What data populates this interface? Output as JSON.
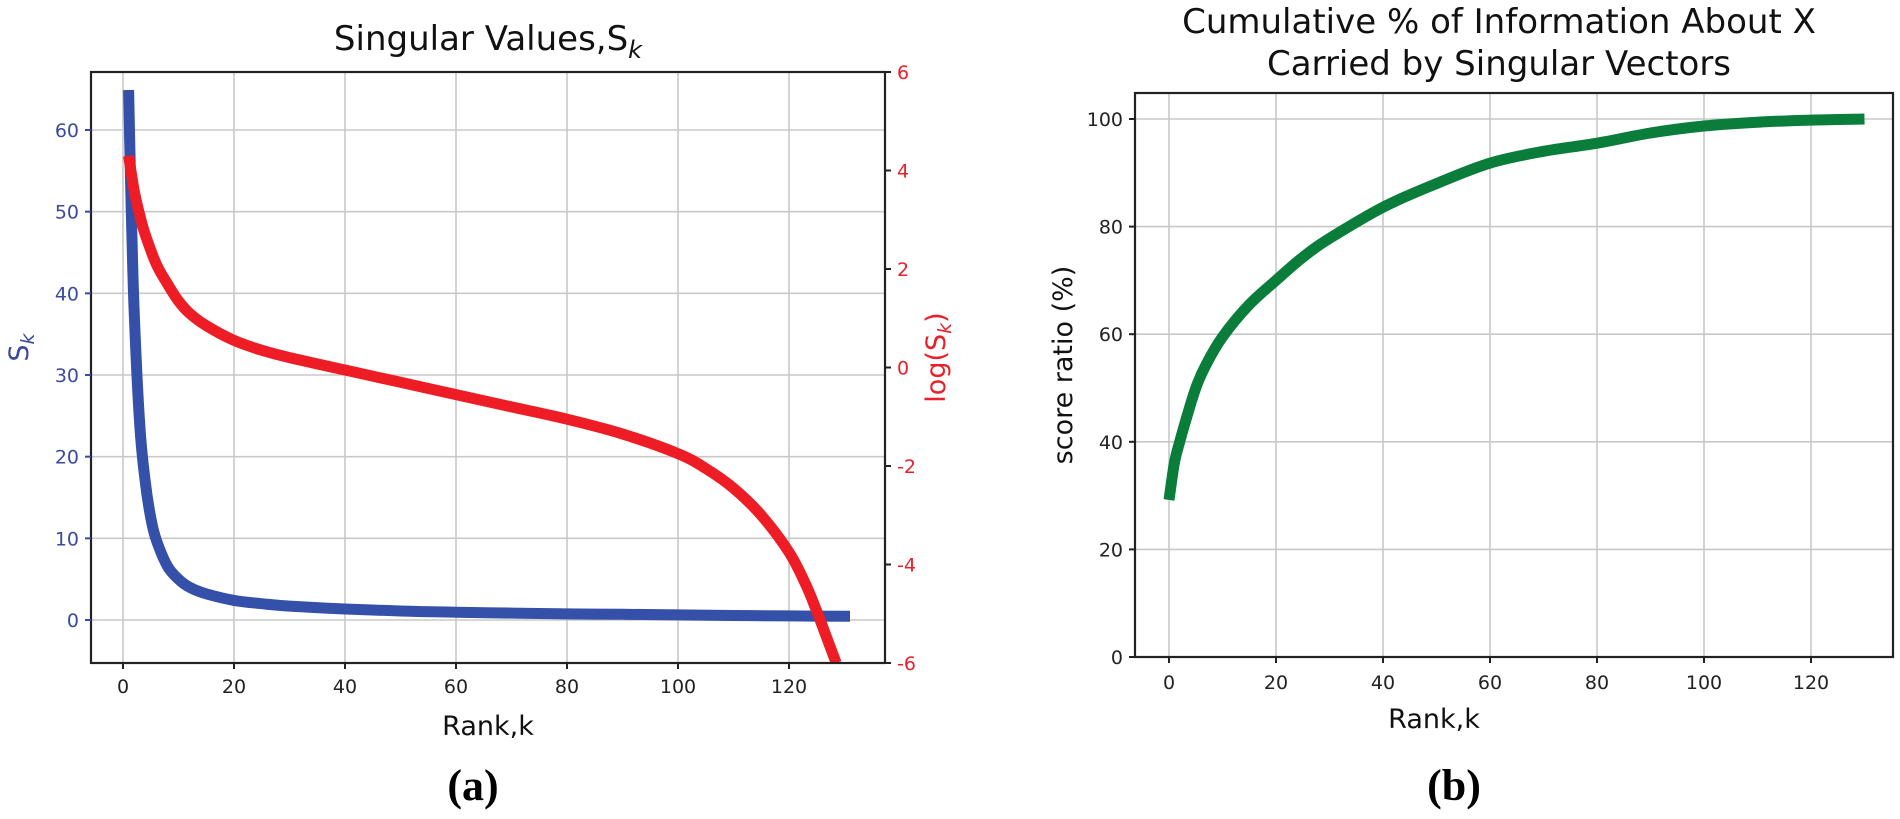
{
  "chart_data": [
    {
      "id": "a",
      "type": "line",
      "title": "Singular Values,S",
      "title_subscript": "k",
      "caption": "(a)",
      "xlabel": "Rank,k",
      "ylabel": "S",
      "ylabel_subscript": "k",
      "y2label": "log(S",
      "y2label_subscript": "k",
      "y2label_close": ")",
      "xlim": [
        -5,
        135
      ],
      "ylim": [
        -5,
        67
      ],
      "y2lim": [
        -6,
        6
      ],
      "xticks": [
        0,
        20,
        40,
        60,
        80,
        100,
        120
      ],
      "yticks": [
        0,
        10,
        20,
        30,
        40,
        50,
        60
      ],
      "y2ticks": [
        -6,
        -4,
        -2,
        0,
        2,
        4,
        6
      ],
      "y2ticklabels": [
        "-6",
        "-4",
        "-2",
        "0",
        "2",
        "4",
        "6"
      ],
      "grid": true,
      "colors": {
        "left_axis": "#3b4a9c",
        "right_axis": "#e8202a",
        "s_k": "#3450a8",
        "log_s_k": "#ee1c25"
      },
      "series": [
        {
          "name": "S_k",
          "axis": "left",
          "x": [
            1,
            1.5,
            2,
            3,
            4,
            5,
            6,
            8,
            10,
            12,
            15,
            20,
            25,
            30,
            40,
            50,
            60,
            70,
            80,
            90,
            100,
            110,
            120,
            131
          ],
          "y": [
            64.9,
            50,
            38,
            24,
            17,
            12.5,
            9.8,
            6.6,
            5.0,
            4.0,
            3.2,
            2.4,
            2.0,
            1.7,
            1.35,
            1.1,
            0.95,
            0.85,
            0.75,
            0.7,
            0.62,
            0.55,
            0.5,
            0.45
          ]
        },
        {
          "name": "log(S_k)",
          "axis": "right",
          "x": [
            1,
            2,
            3,
            4,
            6,
            8,
            10,
            12,
            15,
            20,
            25,
            30,
            40,
            50,
            60,
            70,
            80,
            90,
            100,
            105,
            110,
            115,
            120,
            123,
            125,
            127,
            128.5
          ],
          "y": [
            4.3,
            3.6,
            3.1,
            2.7,
            2.1,
            1.7,
            1.35,
            1.1,
            0.85,
            0.55,
            0.35,
            0.2,
            -0.05,
            -0.3,
            -0.55,
            -0.8,
            -1.05,
            -1.35,
            -1.75,
            -2.05,
            -2.45,
            -3.0,
            -3.75,
            -4.4,
            -4.95,
            -5.55,
            -6.0
          ]
        }
      ]
    },
    {
      "id": "b",
      "type": "line",
      "title_line1": "Cumulative % of Information About X",
      "title_line2": "Carried by Singular Vectors",
      "caption": "(b)",
      "xlabel": "Rank,k",
      "ylabel": "score ratio (%)",
      "xlim": [
        -6,
        135
      ],
      "ylim": [
        0,
        105
      ],
      "xticks": [
        0,
        20,
        40,
        60,
        80,
        100,
        120
      ],
      "yticks": [
        0,
        20,
        40,
        60,
        80,
        100
      ],
      "grid": true,
      "colors": {
        "line": "#0a7d3b"
      },
      "series": [
        {
          "name": "cumulative score ratio",
          "x": [
            0,
            1,
            2,
            3,
            5,
            7,
            10,
            15,
            20,
            25,
            30,
            40,
            50,
            60,
            70,
            80,
            90,
            100,
            110,
            120,
            130
          ],
          "y": [
            29.2,
            36,
            40,
            43.5,
            50,
            54.5,
            59.5,
            65.5,
            70,
            74.3,
            77.8,
            83.6,
            88,
            91.8,
            94,
            95.5,
            97.4,
            98.7,
            99.4,
            99.8,
            100
          ]
        }
      ]
    }
  ]
}
